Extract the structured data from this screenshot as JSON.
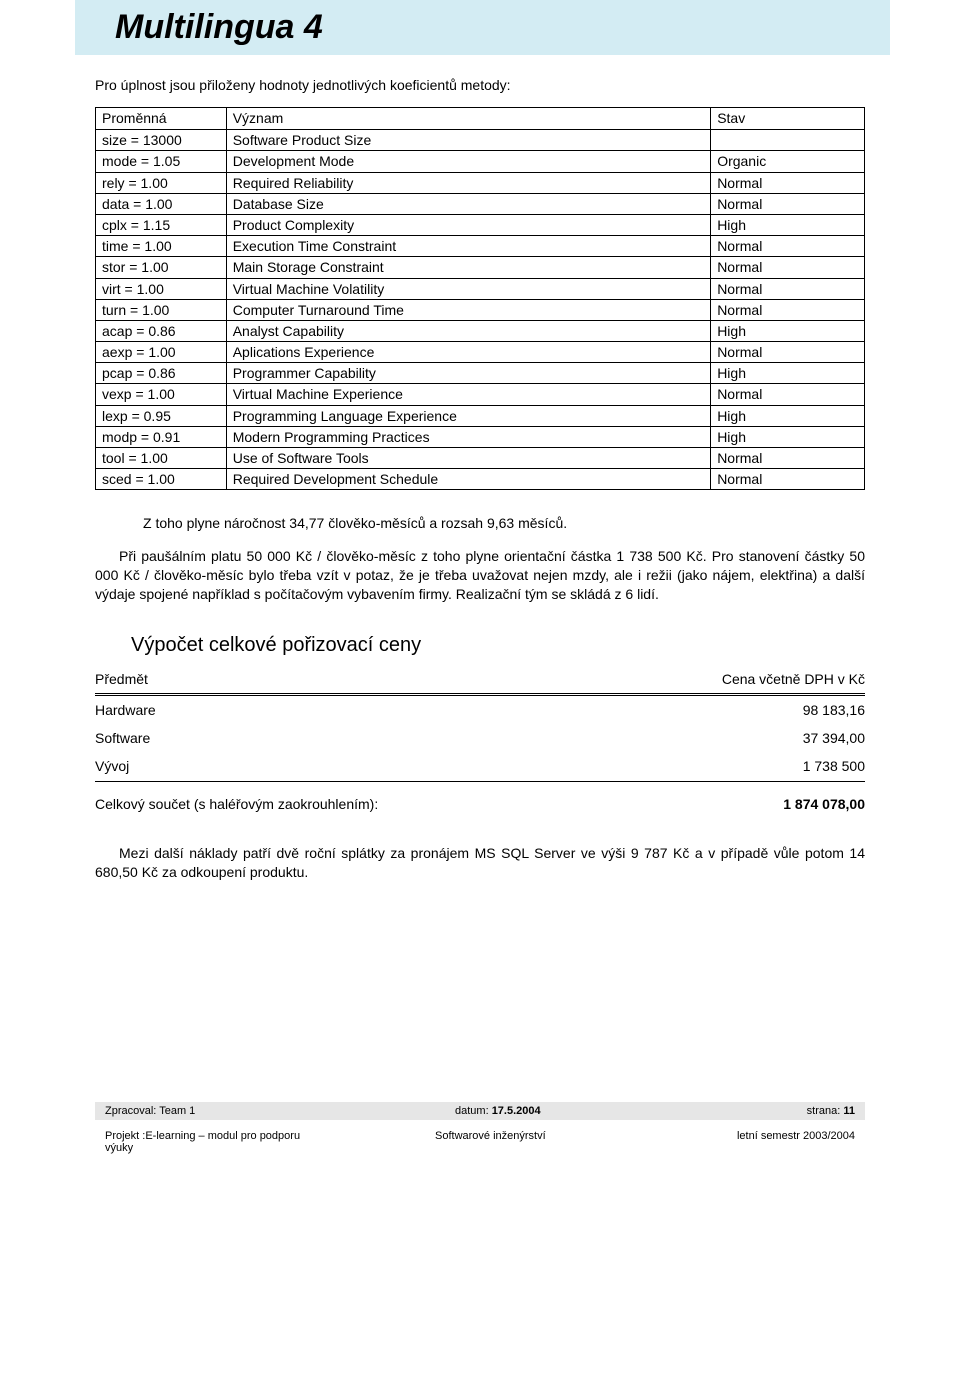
{
  "header": {
    "title": "Multilingua 4"
  },
  "intro": "Pro úplnost jsou přiloženy hodnoty jednotlivých koeficientů metody:",
  "coeff_table": {
    "headers": [
      "Proměnná",
      "Význam",
      "Stav"
    ],
    "rows": [
      [
        "size = 13000",
        "Software Product Size",
        ""
      ],
      [
        "mode = 1.05",
        "Development Mode",
        "Organic"
      ],
      [
        "rely = 1.00",
        "Required Reliability",
        "Normal"
      ],
      [
        "data = 1.00",
        "Database Size",
        "Normal"
      ],
      [
        "cplx = 1.15",
        "Product Complexity",
        "High"
      ],
      [
        "time = 1.00",
        "Execution Time Constraint",
        "Normal"
      ],
      [
        "stor = 1.00",
        "Main Storage Constraint",
        "Normal"
      ],
      [
        "virt = 1.00",
        "Virtual Machine Volatility",
        "Normal"
      ],
      [
        "turn = 1.00",
        "Computer Turnaround Time",
        "Normal"
      ],
      [
        "acap = 0.86",
        "Analyst Capability",
        "High"
      ],
      [
        "aexp = 1.00",
        "Aplications Experience",
        "Normal"
      ],
      [
        "pcap = 0.86",
        "Programmer Capability",
        "High"
      ],
      [
        "vexp = 1.00",
        "Virtual Machine Experience",
        "Normal"
      ],
      [
        "lexp = 0.95",
        "Programming Language Experience",
        "High"
      ],
      [
        "modp = 0.91",
        "Modern Programming Practices",
        "High"
      ],
      [
        "tool = 1.00",
        "Use of Software Tools",
        "Normal"
      ],
      [
        "sced = 1.00",
        "Required Development Schedule",
        "Normal"
      ]
    ]
  },
  "para1": "Z toho plyne náročnost 34,77 člověko-měsíců a rozsah 9,63 měsíců.",
  "para2": "Při paušálním platu 50 000 Kč / člověko-měsíc z toho plyne orientační částka 1 738 500 Kč. Pro stanovení částky 50 000 Kč / člověko-měsíc bylo třeba vzít v potaz, že je třeba uvažovat nejen mzdy, ale i režii (jako nájem, elektřina) a další výdaje spojené například s počítačovým vybavením firmy. Realizační tým se skládá z 6 lidí.",
  "price_section": {
    "title": "Výpočet celkové pořizovací ceny",
    "col_left": "Předmět",
    "col_right": "Cena včetně DPH v Kč",
    "rows": [
      {
        "label": "Hardware",
        "value": "98 183,16"
      },
      {
        "label": "Software",
        "value": "37 394,00"
      },
      {
        "label": "Vývoj",
        "value": "1 738 500"
      }
    ],
    "total_label": "Celkový součet (s haléřovým zaokrouhlením):",
    "total_value": "1 874 078,00"
  },
  "para3": "Mezi další náklady patří dvě roční splátky za pronájem MS SQL Server ve výši 9 787 Kč a v případě vůle potom 14 680,50 Kč za odkoupení produktu.",
  "footer": {
    "line1_left": "Zpracoval: Team 1",
    "line1_mid_label": "datum: ",
    "line1_mid_value": "17.5.2004",
    "line1_right_label": "strana: ",
    "line1_right_value": "11",
    "line2_left": "Projekt :E-learning – modul pro podporu výuky",
    "line2_mid": "Softwarové inženýrství",
    "line2_right": "letní semestr 2003/2004"
  }
}
